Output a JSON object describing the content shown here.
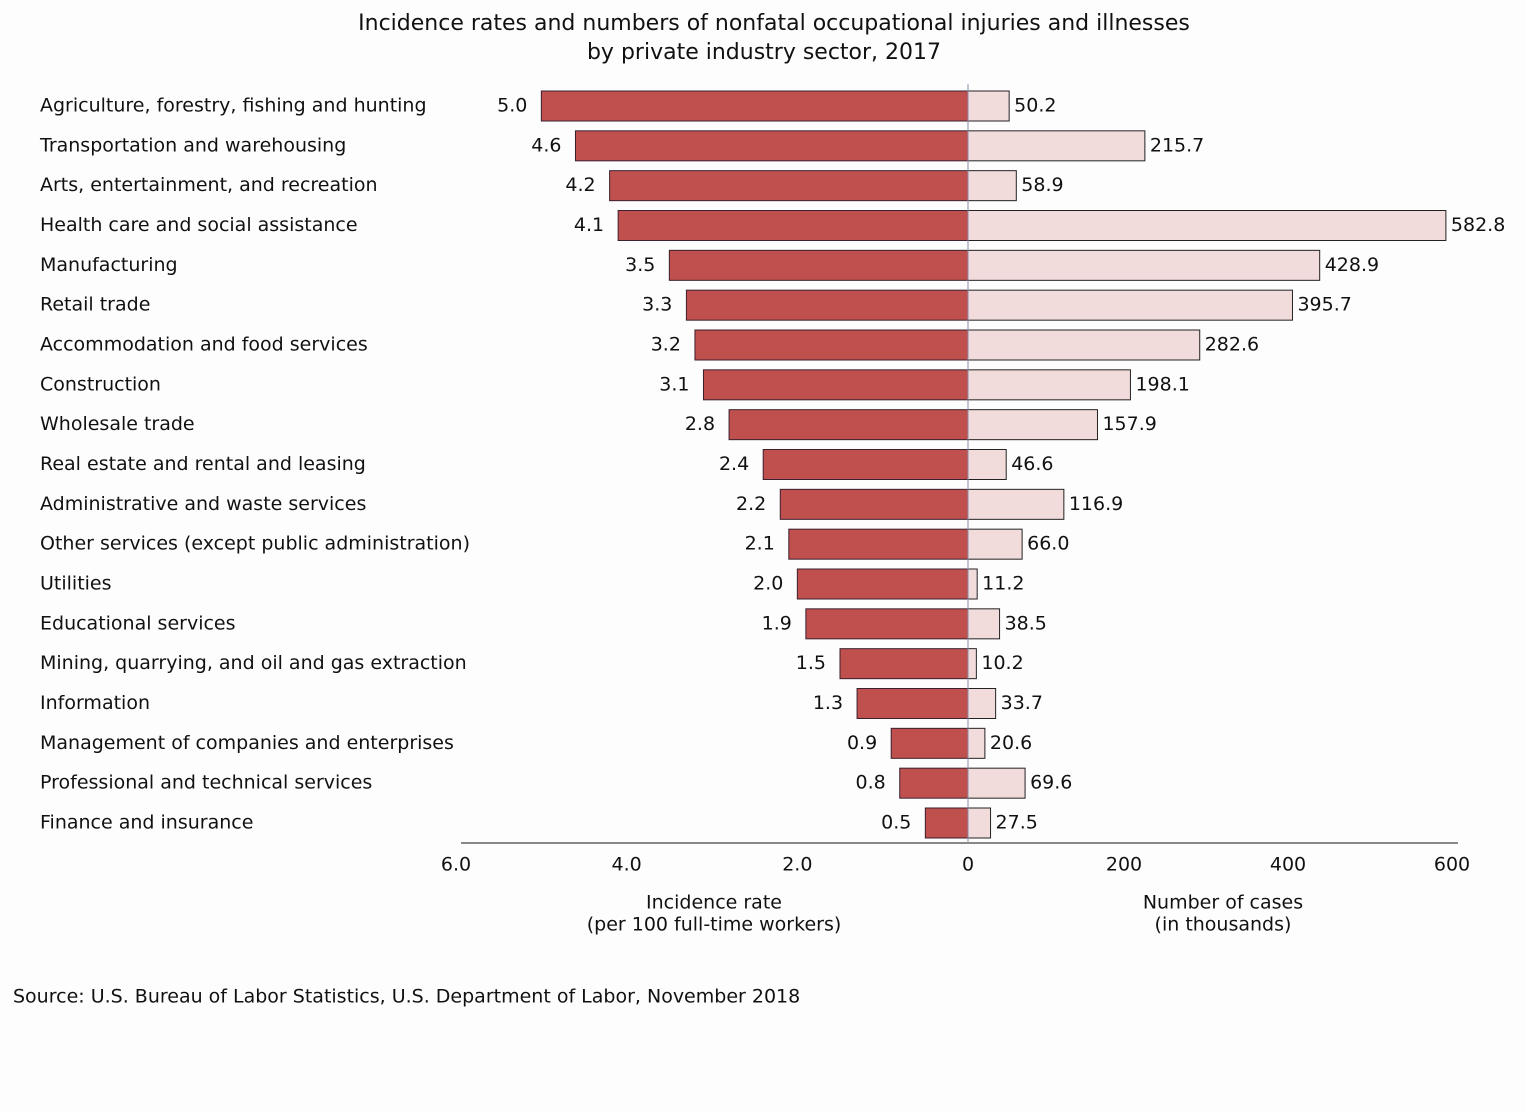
{
  "chart_data": {
    "type": "butterfly",
    "title": [
      "Incidence rates and numbers of nonfatal occupational injuries and illnesses",
      "by private industry sector, 2017"
    ],
    "categories": [
      "Agriculture, forestry, fishing and hunting",
      "Transportation and warehousing",
      "Arts, entertainment, and recreation",
      "Health care and social assistance",
      "Manufacturing",
      "Retail trade",
      "Accommodation and food services",
      "Construction",
      "Wholesale trade",
      "Real estate and rental and leasing",
      "Administrative and waste services",
      "Other services (except public administration)",
      "Utilities",
      "Educational services",
      "Mining, quarrying, and oil and gas extraction",
      "Information",
      "Management of companies and enterprises",
      "Professional and technical services",
      "Finance and insurance"
    ],
    "series": [
      {
        "color": "#c0504d",
        "axis": "x",
        "values": [
          5.0,
          4.6,
          4.2,
          4.1,
          3.5,
          3.3,
          3.2,
          3.1,
          2.8,
          2.4,
          2.2,
          2.1,
          2.0,
          1.9,
          1.5,
          1.3,
          0.9,
          0.8,
          0.5
        ],
        "value_labels": [
          "5.0",
          "4.6",
          "4.2",
          "4.1",
          "3.5",
          "3.3",
          "3.2",
          "3.1",
          "2.8",
          "2.4",
          "2.2",
          "2.1",
          "2.0",
          "1.9",
          "1.5",
          "1.3",
          "0.9",
          "0.8",
          "0.5"
        ]
      },
      {
        "color": "#f2dcdb",
        "axis": "x2",
        "values": [
          50.2,
          215.7,
          58.9,
          582.8,
          428.9,
          395.7,
          282.6,
          198.1,
          157.9,
          46.6,
          116.9,
          66.0,
          11.2,
          38.5,
          10.2,
          33.7,
          20.6,
          69.6,
          27.5
        ],
        "value_labels": [
          "50.2",
          "215.7",
          "58.9",
          "582.8",
          "428.9",
          "395.7",
          "282.6",
          "198.1",
          "157.9",
          "46.6",
          "116.9",
          "66.0",
          "11.2",
          "38.5",
          "10.2",
          "33.7",
          "20.6",
          "69.6",
          "27.5"
        ]
      }
    ],
    "xlim": [
      6,
      0
    ],
    "xticks": [
      {
        "value": 6,
        "label": "6.0"
      },
      {
        "value": 4,
        "label": "4.0"
      },
      {
        "value": 2,
        "label": "2.0"
      },
      0
    ],
    "x_label": [
      "Incidence rate",
      "(per 100 full-time workers)"
    ],
    "x2lim": [
      0,
      600
    ],
    "x2ticks": [
      200,
      400,
      600
    ],
    "x2_label": [
      "Number of cases",
      "(in thousands)"
    ],
    "source": "Source: U.S. Bureau of Labor Statistics, U.S. Department of Labor, November 2018"
  }
}
